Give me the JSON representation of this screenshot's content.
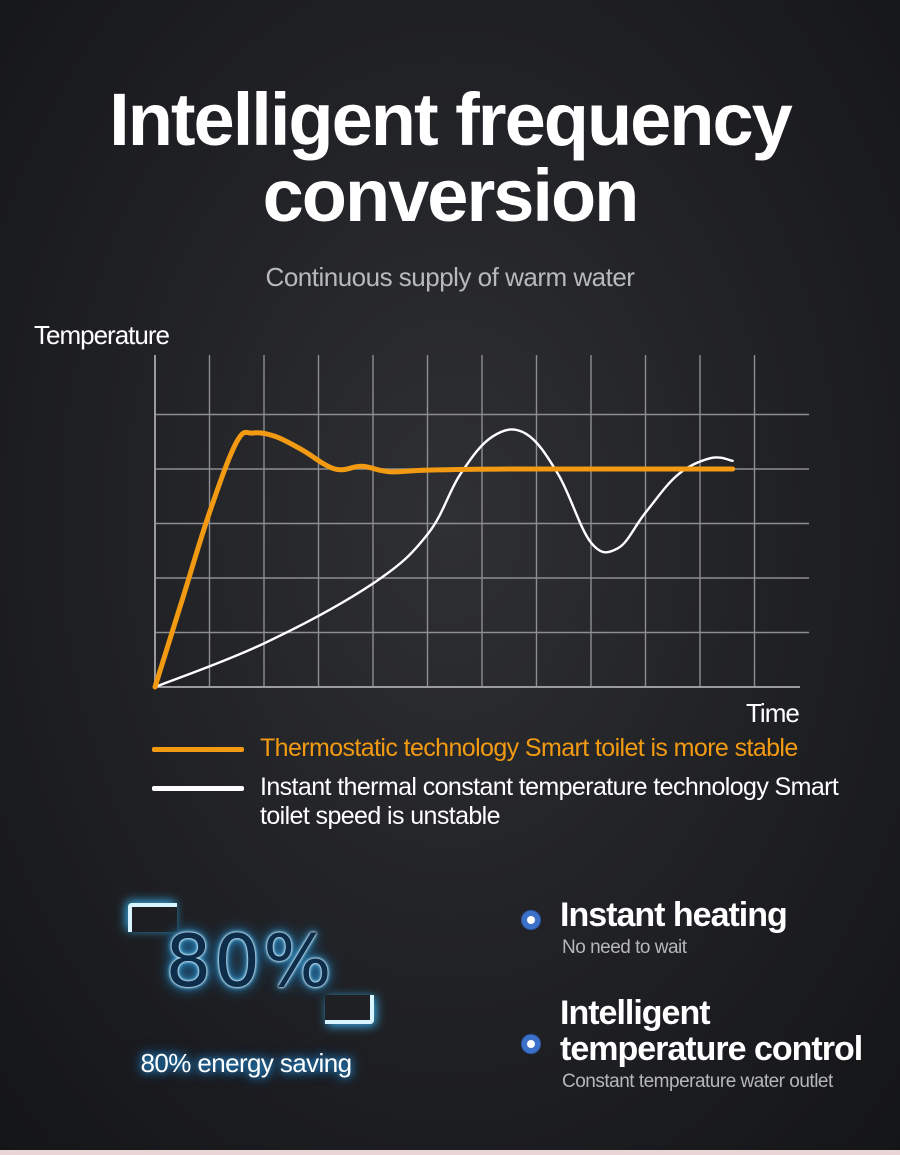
{
  "header": {
    "title_line1": "Intelligent frequency",
    "title_line2": "conversion",
    "subtitle": "Continuous supply of warm water"
  },
  "chart_data": {
    "type": "line",
    "ylabel": "Temperature",
    "xlabel": "Time",
    "grid": true,
    "xlim": [
      0,
      12
    ],
    "ylim": [
      0,
      5
    ],
    "series": [
      {
        "name": "Thermostatic technology Smart toilet is more stable",
        "color": "#f29a12",
        "points": [
          [
            0,
            0
          ],
          [
            0.5,
            1.6
          ],
          [
            1.0,
            3.2
          ],
          [
            1.5,
            4.5
          ],
          [
            1.8,
            4.66
          ],
          [
            2.2,
            4.6
          ],
          [
            2.7,
            4.35
          ],
          [
            3.3,
            4.0
          ],
          [
            3.8,
            4.05
          ],
          [
            4.3,
            3.95
          ],
          [
            5.0,
            3.98
          ],
          [
            6.5,
            4.0
          ],
          [
            8.5,
            4.0
          ],
          [
            10.6,
            4.0
          ]
        ],
        "legend_label": "Thermostatic technology Smart toilet is more stable"
      },
      {
        "name": "Instant thermal constant temperature technology Smart toilet speed is unstable",
        "color": "#ffffff",
        "points": [
          [
            0,
            0
          ],
          [
            2.0,
            0.8
          ],
          [
            4.0,
            1.9
          ],
          [
            5.0,
            2.8
          ],
          [
            5.6,
            3.9
          ],
          [
            6.2,
            4.6
          ],
          [
            6.8,
            4.65
          ],
          [
            7.4,
            3.9
          ],
          [
            8.0,
            2.65
          ],
          [
            8.5,
            2.55
          ],
          [
            9.0,
            3.2
          ],
          [
            9.6,
            3.9
          ],
          [
            10.2,
            4.2
          ],
          [
            10.6,
            4.15
          ]
        ],
        "legend_label": "Instant thermal constant temperature technology Smart toilet speed is unstable"
      }
    ]
  },
  "saving": {
    "value": "80%",
    "label": "80% energy saving"
  },
  "features": [
    {
      "title": "Instant heating",
      "desc": "No need to wait"
    },
    {
      "title_line1": "Intelligent",
      "title_line2": "temperature control",
      "desc": "Constant temperature water outlet"
    }
  ],
  "colors": {
    "accent_orange": "#f29a12",
    "glow_blue": "#35b8ff",
    "bullet_blue": "#3c71c9"
  }
}
